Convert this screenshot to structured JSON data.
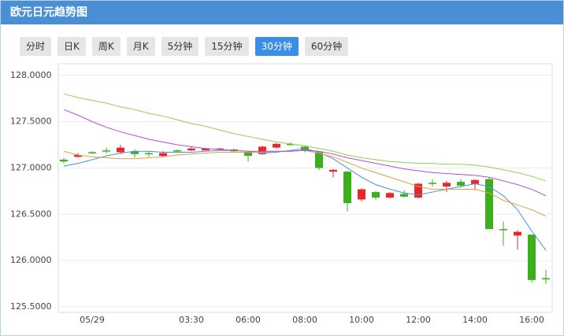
{
  "chart_data": {
    "type": "candlestick",
    "title": "欧元日元趋势图",
    "tabs": [
      "分时",
      "日K",
      "周K",
      "月K",
      "5分钟",
      "15分钟",
      "30分钟",
      "60分钟"
    ],
    "active_tab": 6,
    "categories": [
      null,
      null,
      "05/29",
      null,
      null,
      null,
      null,
      null,
      null,
      "03:30",
      null,
      null,
      null,
      "06:00",
      null,
      null,
      null,
      "08:00",
      null,
      null,
      null,
      "10:00",
      null,
      null,
      null,
      "12:00",
      null,
      null,
      null,
      "14:00",
      null,
      null,
      null,
      "16:00",
      null
    ],
    "open": [
      127.09,
      127.12,
      127.17,
      127.19,
      127.17,
      127.18,
      127.16,
      127.13,
      127.19,
      127.19,
      127.19,
      127.2,
      127.2,
      127.17,
      127.15,
      127.22,
      127.26,
      127.23,
      127.17,
      126.96,
      126.96,
      126.66,
      126.74,
      126.68,
      126.72,
      126.68,
      126.84,
      126.8,
      126.85,
      126.83,
      126.88,
      126.34,
      126.27,
      126.28,
      125.81
    ],
    "high": [
      127.11,
      127.16,
      127.18,
      127.22,
      127.25,
      127.2,
      127.18,
      127.18,
      127.2,
      127.23,
      127.22,
      127.22,
      127.21,
      127.18,
      127.24,
      127.27,
      127.28,
      127.24,
      127.18,
      126.99,
      126.97,
      126.78,
      126.75,
      126.74,
      126.76,
      126.84,
      126.88,
      126.86,
      126.88,
      126.88,
      126.9,
      126.42,
      126.33,
      126.28,
      125.9
    ],
    "low": [
      127.05,
      127.11,
      127.15,
      127.16,
      127.15,
      127.11,
      127.12,
      127.12,
      127.17,
      127.18,
      127.19,
      127.19,
      127.17,
      127.07,
      127.14,
      127.21,
      127.24,
      127.17,
      126.98,
      126.9,
      126.53,
      126.64,
      126.66,
      126.67,
      126.68,
      126.67,
      126.8,
      126.74,
      126.79,
      126.76,
      126.34,
      126.16,
      126.12,
      125.76,
      125.75
    ],
    "close": [
      127.07,
      127.14,
      127.16,
      127.18,
      127.22,
      127.15,
      127.15,
      127.16,
      127.18,
      127.21,
      127.21,
      127.21,
      127.18,
      127.13,
      127.23,
      127.26,
      127.25,
      127.19,
      127.0,
      126.98,
      126.62,
      126.77,
      126.68,
      126.73,
      126.69,
      126.83,
      126.83,
      126.84,
      126.81,
      126.87,
      126.34,
      126.33,
      126.31,
      125.79,
      125.8
    ],
    "up_color": "#e8262c",
    "down_color": "#3cb01c",
    "lines": [
      {
        "color": "#4a90d9",
        "values": [
          127.02,
          127.05,
          127.09,
          127.13,
          127.16,
          127.18,
          127.18,
          127.17,
          127.17,
          127.17,
          127.18,
          127.19,
          127.19,
          127.18,
          127.16,
          127.17,
          127.19,
          127.21,
          127.17,
          127.1,
          127.0,
          126.9,
          126.82,
          126.77,
          126.73,
          126.71,
          126.74,
          126.77,
          126.8,
          126.83,
          126.8,
          126.7,
          126.55,
          126.32,
          126.11
        ]
      },
      {
        "color": "#e0a040",
        "values": [
          127.18,
          127.14,
          127.12,
          127.11,
          127.1,
          127.1,
          127.11,
          127.12,
          127.14,
          127.15,
          127.16,
          127.17,
          127.17,
          127.17,
          127.17,
          127.18,
          127.18,
          127.19,
          127.16,
          127.12,
          127.06,
          127.0,
          126.95,
          126.9,
          126.85,
          126.8,
          126.77,
          126.77,
          126.77,
          126.77,
          126.73,
          126.65,
          126.6,
          126.55,
          126.48
        ]
      },
      {
        "color": "#b050d0",
        "values": [
          127.63,
          127.57,
          127.5,
          127.44,
          127.39,
          127.35,
          127.31,
          127.28,
          127.25,
          127.23,
          127.21,
          127.2,
          127.19,
          127.18,
          127.18,
          127.18,
          127.18,
          127.19,
          127.18,
          127.15,
          127.11,
          127.08,
          127.05,
          127.02,
          126.99,
          126.97,
          126.95,
          126.94,
          126.93,
          126.92,
          126.9,
          126.86,
          126.82,
          126.77,
          126.7
        ]
      },
      {
        "color": "#90d050",
        "values": [
          127.8,
          127.76,
          127.73,
          127.7,
          127.66,
          127.63,
          127.59,
          127.56,
          127.52,
          127.48,
          127.45,
          127.41,
          127.37,
          127.34,
          127.31,
          127.28,
          127.26,
          127.24,
          127.21,
          127.18,
          127.14,
          127.11,
          127.09,
          127.07,
          127.06,
          127.05,
          127.05,
          127.04,
          127.04,
          127.03,
          127.01,
          126.98,
          126.95,
          126.91,
          126.86
        ]
      }
    ],
    "ylim": [
      125.5,
      128.1
    ],
    "yticks": [
      {
        "value": 125.5,
        "label": "125.5000"
      },
      {
        "value": 126,
        "label": "126.0000"
      },
      {
        "value": 126.5,
        "label": "126.5000"
      },
      {
        "value": 127,
        "label": "127.0000"
      },
      {
        "value": 127.5,
        "label": "127.5000"
      },
      {
        "value": 128,
        "label": "128.0000"
      }
    ],
    "grid": true
  }
}
